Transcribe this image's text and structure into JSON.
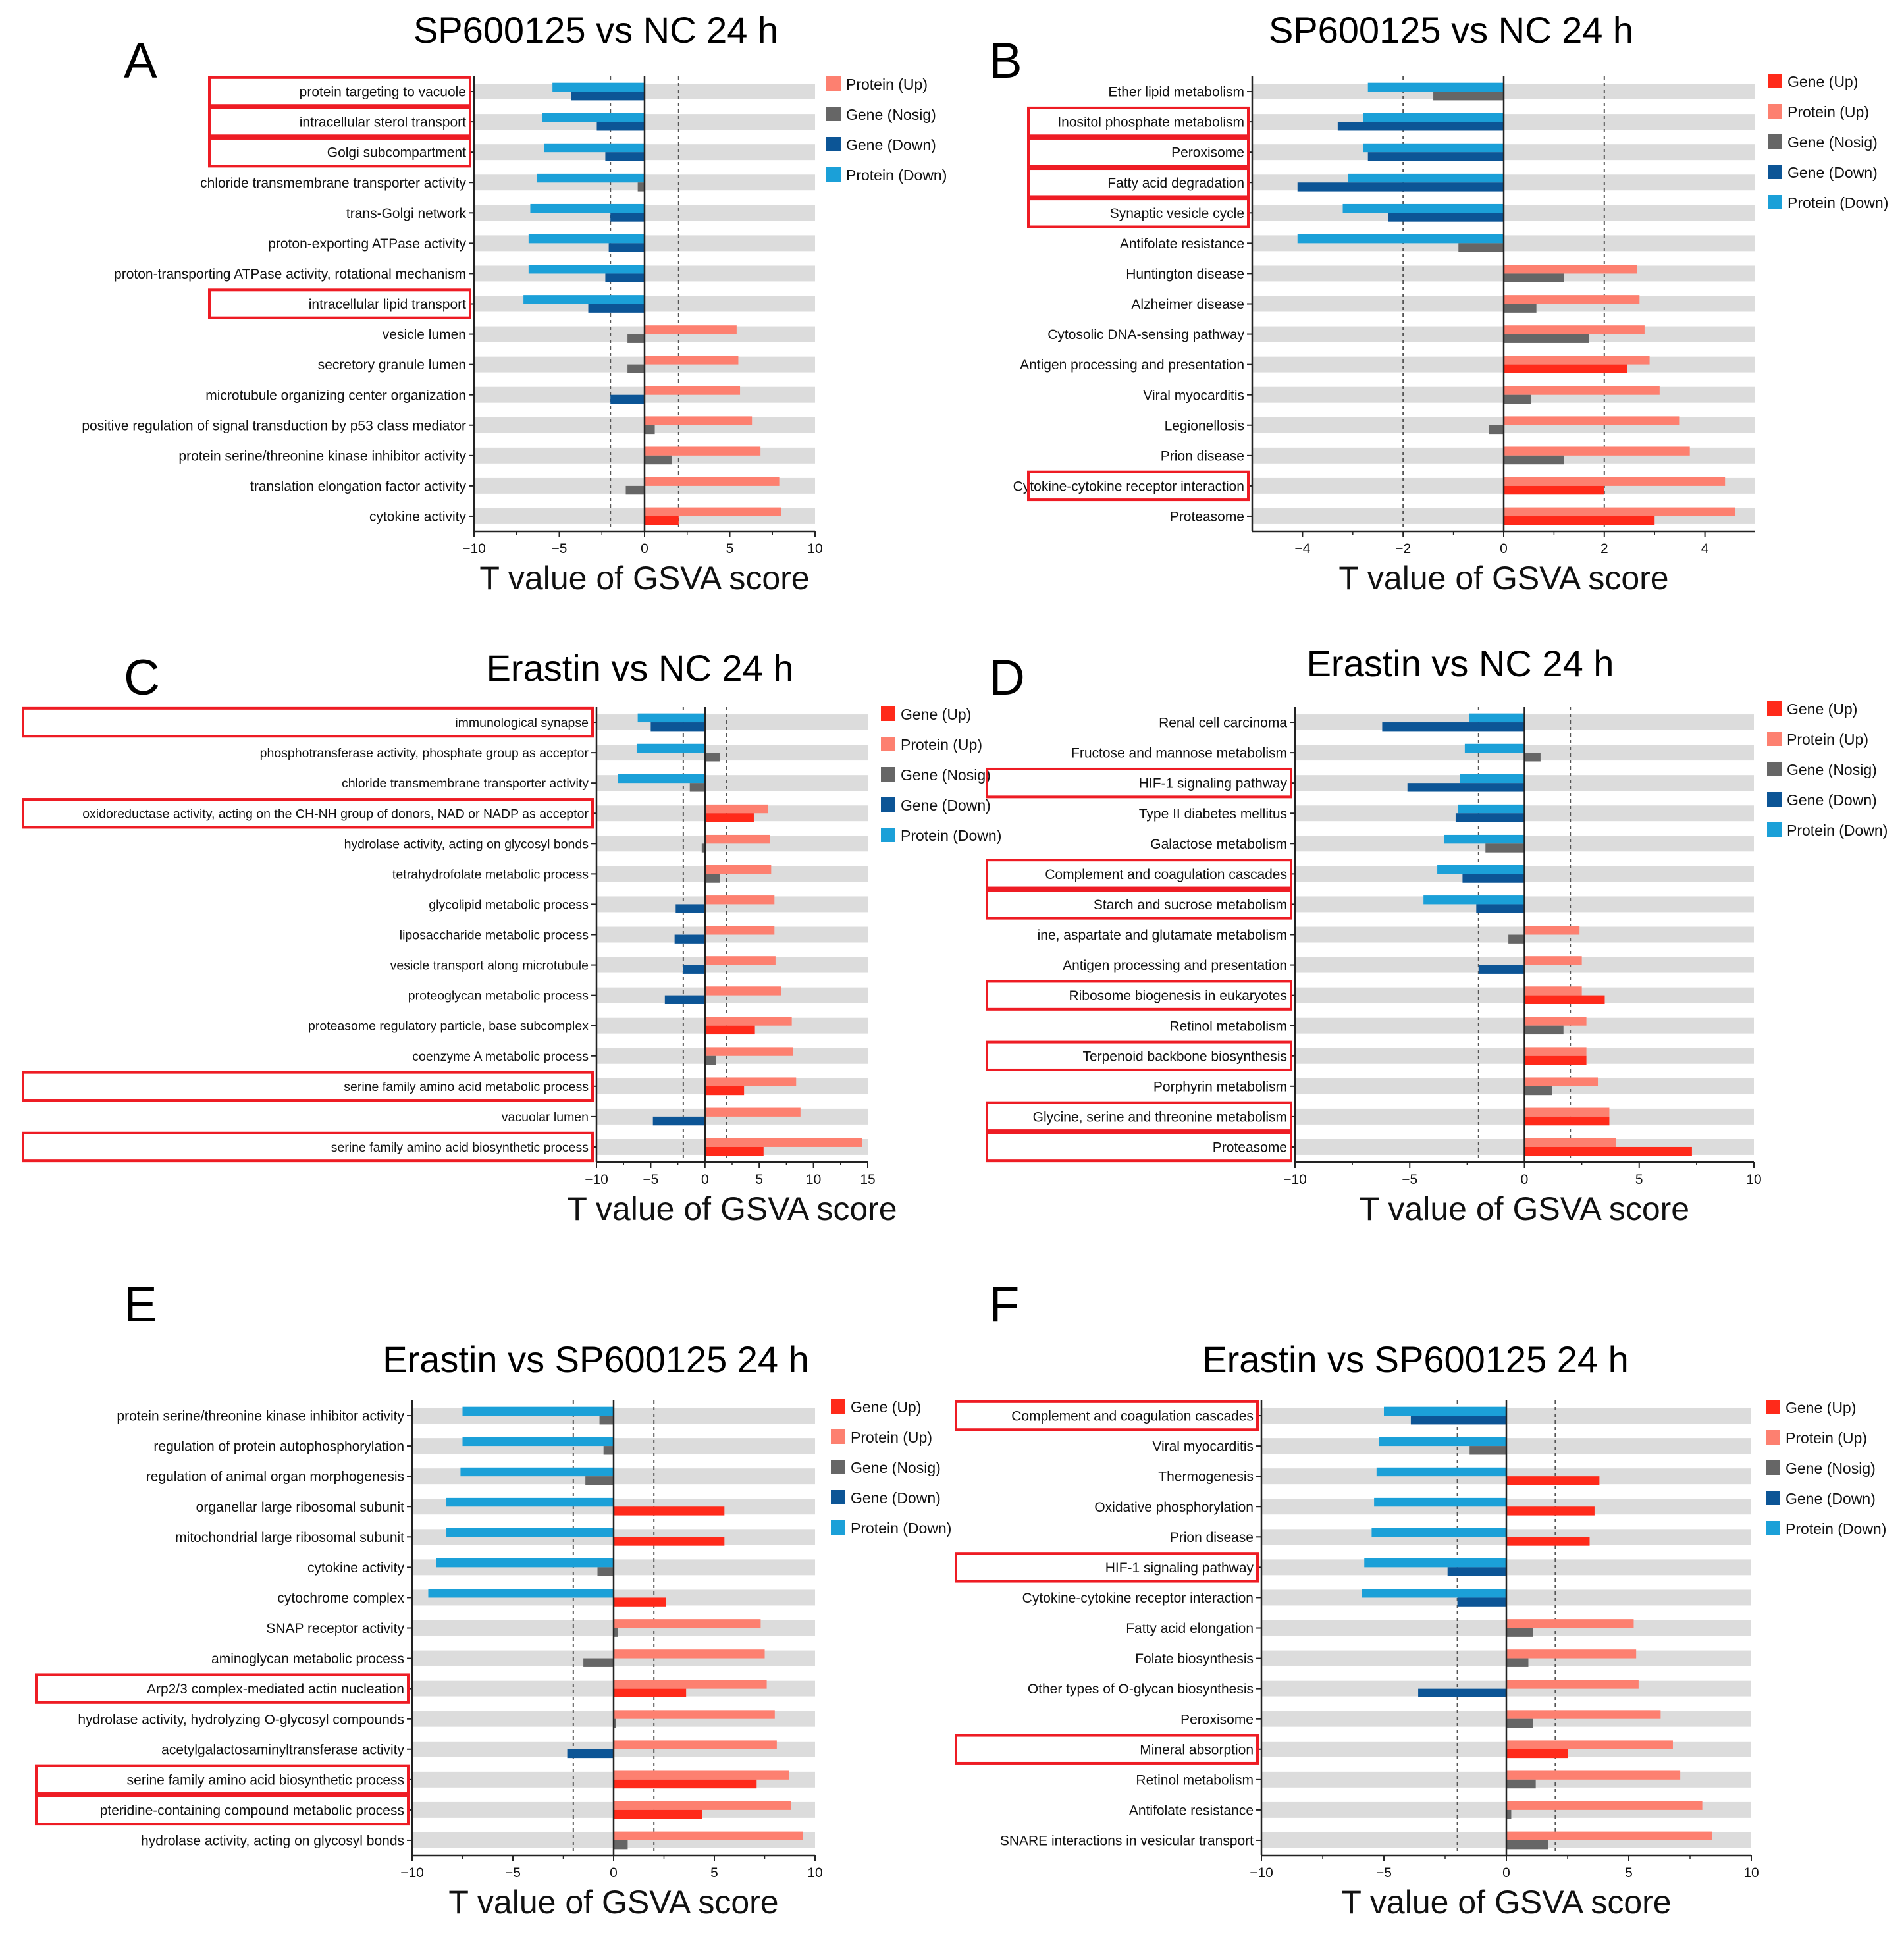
{
  "colors": {
    "gene_up": "#ff2a1a",
    "protein_up": "#fd8070",
    "gene_nosig": "#666666",
    "gene_down": "#0c5596",
    "protein_down": "#1ba0d8",
    "row_band": "#dcdcdc",
    "highlight_box": "#ee1c24"
  },
  "chart_data": [
    {
      "panel": "A",
      "type": "bar",
      "orientation": "horizontal",
      "title": "SP600125 vs NC 24 h",
      "xlabel": "T value of GSVA score",
      "xlim": [
        -10,
        10
      ],
      "xticks": [
        -10,
        -5,
        0,
        5,
        10
      ],
      "reference_lines": [
        -2,
        2
      ],
      "legend": [
        "Protein (Up)",
        "Gene (Nosig)",
        "Gene (Down)",
        "Protein (Down)"
      ],
      "categories": [
        "protein targeting to vacuole",
        "intracellular sterol transport",
        "Golgi subcompartment",
        "chloride transmembrane transporter activity",
        "trans-Golgi network",
        "proton-exporting ATPase activity",
        "proton-transporting ATPase activity, rotational mechanism",
        "intracellular lipid transport",
        "vesicle lumen",
        "secretory granule lumen",
        "microtubule organizing center organization",
        "positive regulation of signal transduction by p53 class mediator",
        "protein serine/threonine kinase inhibitor activity",
        "translation elongation factor activity",
        "cytokine activity"
      ],
      "highlighted": [
        "protein targeting to vacuole",
        "intracellular sterol transport",
        "Golgi subcompartment",
        "intracellular lipid transport"
      ],
      "series": [
        {
          "name": "Protein",
          "values": [
            -5.4,
            -6,
            -5.9,
            -6.3,
            -6.7,
            -6.8,
            -6.8,
            -7.1,
            5.4,
            5.5,
            5.6,
            6.3,
            6.8,
            7.9,
            8.0
          ]
        },
        {
          "name": "Gene",
          "values": [
            -4.3,
            -2.8,
            -2.3,
            -0.4,
            -2.0,
            -2.1,
            -2.3,
            -3.3,
            -1.0,
            -1.0,
            -2.0,
            0.6,
            1.6,
            -1.1,
            2.0
          ]
        }
      ]
    },
    {
      "panel": "B",
      "type": "bar",
      "orientation": "horizontal",
      "title": "SP600125 vs NC 24 h",
      "xlabel": "T value of GSVA score",
      "xlim": [
        -5,
        5
      ],
      "xticks": [
        -4,
        -2,
        0,
        2,
        4
      ],
      "reference_lines": [
        -2,
        2
      ],
      "legend": [
        "Gene (Up)",
        "Protein (Up)",
        "Gene (Nosig)",
        "Gene (Down)",
        "Protein (Down)"
      ],
      "categories": [
        "Ether lipid metabolism",
        "Inositol phosphate metabolism",
        "Peroxisome",
        "Fatty acid degradation",
        "Synaptic vesicle cycle",
        "Antifolate resistance",
        "Huntington disease",
        "Alzheimer disease",
        "Cytosolic DNA-sensing pathway",
        "Antigen processing and presentation",
        "Viral myocarditis",
        "Legionellosis",
        "Prion disease",
        "Cytokine-cytokine receptor interaction",
        "Proteasome"
      ],
      "highlighted": [
        "Inositol phosphate metabolism",
        "Peroxisome",
        "Fatty acid degradation",
        "Synaptic vesicle cycle",
        "Cytokine-cytokine receptor interaction"
      ],
      "series": [
        {
          "name": "Protein",
          "values": [
            -2.7,
            -2.8,
            -2.8,
            -3.1,
            -3.2,
            -4.1,
            2.65,
            2.7,
            2.8,
            2.9,
            3.1,
            3.5,
            3.7,
            4.4,
            4.6
          ]
        },
        {
          "name": "Gene",
          "values": [
            -1.4,
            -3.3,
            -2.7,
            -4.1,
            -2.3,
            -0.9,
            1.2,
            0.65,
            1.7,
            2.45,
            0.55,
            -0.3,
            1.2,
            2.0,
            3.0
          ]
        }
      ]
    },
    {
      "panel": "C",
      "type": "bar",
      "orientation": "horizontal",
      "title": "Erastin vs NC 24 h",
      "xlabel": "T value of GSVA score",
      "xlim": [
        -10,
        15
      ],
      "xticks": [
        -10,
        -5,
        0,
        5,
        10,
        15
      ],
      "reference_lines": [
        -2,
        2
      ],
      "legend": [
        "Gene (Up)",
        "Protein (Up)",
        "Gene (Nosig)",
        "Gene (Down)",
        "Protein (Down)"
      ],
      "categories": [
        "immunological synapse",
        "phosphotransferase activity, phosphate group as acceptor",
        "chloride transmembrane transporter activity",
        "oxidoreductase activity, acting on the CH-NH group of donors, NAD or NADP as acceptor",
        "hydrolase activity, acting on glycosyl bonds",
        "tetrahydrofolate metabolic process",
        "glycolipid metabolic process",
        "liposaccharide metabolic process",
        "vesicle transport along microtubule",
        "proteoglycan metabolic process",
        "proteasome regulatory particle, base subcomplex",
        "coenzyme A metabolic process",
        "serine family amino acid metabolic process",
        "vacuolar lumen",
        "serine family amino acid biosynthetic process"
      ],
      "highlighted": [
        "immunological synapse",
        "oxidoreductase activity, acting on the CH-NH group of donors, NAD or NADP as acceptor",
        "serine family amino acid metabolic process",
        "serine family amino acid biosynthetic process"
      ],
      "series": [
        {
          "name": "Protein",
          "values": [
            -6.2,
            -6.3,
            -8.0,
            5.8,
            6.0,
            6.1,
            6.4,
            6.4,
            6.5,
            7.0,
            8.0,
            8.1,
            8.4,
            8.8,
            14.5
          ]
        },
        {
          "name": "Gene",
          "values": [
            -5.0,
            1.4,
            -1.4,
            4.5,
            -0.3,
            1.4,
            -2.7,
            -2.8,
            -2.0,
            -3.7,
            4.6,
            1.0,
            3.6,
            -4.8,
            5.4
          ]
        }
      ]
    },
    {
      "panel": "D",
      "type": "bar",
      "orientation": "horizontal",
      "title": "Erastin vs NC 24 h",
      "xlabel": "T value of GSVA score",
      "xlim": [
        -10,
        10
      ],
      "xticks": [
        -10,
        -5,
        0,
        5,
        10
      ],
      "reference_lines": [
        -2,
        2
      ],
      "legend": [
        "Gene (Up)",
        "Protein (Up)",
        "Gene (Nosig)",
        "Gene (Down)",
        "Protein (Down)"
      ],
      "categories": [
        "Renal cell carcinoma",
        "Fructose and mannose metabolism",
        "HIF-1 signaling pathway",
        "Type II diabetes mellitus",
        "Galactose metabolism",
        "Complement and coagulation cascades",
        "Starch and sucrose metabolism",
        "ine, aspartate and glutamate metabolism",
        "Antigen processing and presentation",
        "Ribosome biogenesis in eukaryotes",
        "Retinol metabolism",
        "Terpenoid backbone biosynthesis",
        "Porphyrin metabolism",
        "Glycine, serine and threonine metabolism",
        "Proteasome"
      ],
      "highlighted": [
        "HIF-1 signaling pathway",
        "Complement and coagulation cascades",
        "Starch and sucrose metabolism",
        "Ribosome biogenesis in eukaryotes",
        "Terpenoid backbone biosynthesis",
        "Glycine, serine and threonine metabolism",
        "Proteasome"
      ],
      "series": [
        {
          "name": "Protein",
          "values": [
            -2.4,
            -2.6,
            -2.8,
            -2.9,
            -3.5,
            -3.8,
            -4.4,
            2.4,
            2.5,
            2.5,
            2.7,
            2.7,
            3.2,
            3.7,
            4.0
          ]
        },
        {
          "name": "Gene",
          "values": [
            -6.2,
            0.7,
            -5.1,
            -3.0,
            -1.7,
            -2.7,
            -2.1,
            -0.7,
            -2.0,
            3.5,
            1.7,
            2.7,
            1.2,
            3.7,
            7.3
          ]
        }
      ]
    },
    {
      "panel": "E",
      "type": "bar",
      "orientation": "horizontal",
      "title": "Erastin vs SP600125 24 h",
      "xlabel": "T value of GSVA score",
      "xlim": [
        -10,
        10
      ],
      "xticks": [
        -10,
        -5,
        0,
        5,
        10
      ],
      "reference_lines": [
        -2,
        2
      ],
      "legend": [
        "Gene (Up)",
        "Protein (Up)",
        "Gene (Nosig)",
        "Gene (Down)",
        "Protein (Down)"
      ],
      "categories": [
        "protein serine/threonine kinase inhibitor activity",
        "regulation of protein autophosphorylation",
        "regulation of animal organ morphogenesis",
        "organellar large ribosomal subunit",
        "mitochondrial large ribosomal subunit",
        "cytokine activity",
        "cytochrome complex",
        "SNAP receptor activity",
        "aminoglycan metabolic process",
        "Arp2/3 complex-mediated actin nucleation",
        "hydrolase activity, hydrolyzing O-glycosyl compounds",
        "acetylgalactosaminyltransferase activity",
        "serine family amino acid biosynthetic process",
        "pteridine-containing compound metabolic process",
        "hydrolase activity, acting on glycosyl bonds"
      ],
      "highlighted": [
        "Arp2/3 complex-mediated actin nucleation",
        "serine family amino acid biosynthetic process",
        "pteridine-containing compound metabolic process"
      ],
      "series": [
        {
          "name": "Protein",
          "values": [
            -7.5,
            -7.5,
            -7.6,
            -8.3,
            -8.3,
            -8.8,
            -9.2,
            7.3,
            7.5,
            7.6,
            8.0,
            8.1,
            8.7,
            8.8,
            9.4
          ]
        },
        {
          "name": "Gene",
          "values": [
            -0.7,
            -0.5,
            -1.4,
            5.5,
            5.5,
            -0.8,
            2.6,
            0.2,
            -1.5,
            3.6,
            0.1,
            -2.3,
            7.1,
            4.4,
            0.7
          ]
        }
      ]
    },
    {
      "panel": "F",
      "type": "bar",
      "orientation": "horizontal",
      "title": "Erastin vs SP600125 24 h",
      "xlabel": "T value of GSVA score",
      "xlim": [
        -10,
        10
      ],
      "xticks": [
        -10,
        -5,
        0,
        5,
        10
      ],
      "reference_lines": [
        -2,
        2
      ],
      "legend": [
        "Gene (Up)",
        "Protein (Up)",
        "Gene (Nosig)",
        "Gene (Down)",
        "Protein (Down)"
      ],
      "categories": [
        "Complement and coagulation cascades",
        "Viral myocarditis",
        "Thermogenesis",
        "Oxidative phosphorylation",
        "Prion disease",
        "HIF-1 signaling pathway",
        "Cytokine-cytokine receptor interaction",
        "Fatty acid elongation",
        "Folate biosynthesis",
        "Other types of O-glycan biosynthesis",
        "Peroxisome",
        "Mineral absorption",
        "Retinol metabolism",
        "Antifolate resistance",
        "SNARE interactions in vesicular transport"
      ],
      "highlighted": [
        "Complement and coagulation cascades",
        "HIF-1 signaling pathway",
        "Mineral absorption"
      ],
      "series": [
        {
          "name": "Protein",
          "values": [
            -5.0,
            -5.2,
            -5.3,
            -5.4,
            -5.5,
            -5.8,
            -5.9,
            5.2,
            5.3,
            5.4,
            6.3,
            6.8,
            7.1,
            8.0,
            8.4
          ]
        },
        {
          "name": "Gene",
          "values": [
            -3.9,
            -1.5,
            3.8,
            3.6,
            3.4,
            -2.4,
            -2.0,
            1.1,
            0.9,
            -3.6,
            1.1,
            2.5,
            1.2,
            0.2,
            1.7
          ]
        }
      ]
    }
  ]
}
